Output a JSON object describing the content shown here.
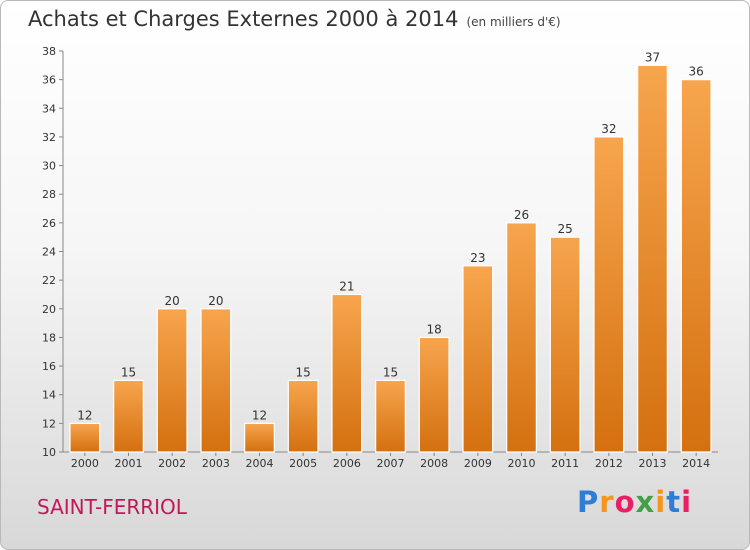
{
  "chart_data": {
    "type": "bar",
    "title": "Achats et Charges Externes 2000 à 2014",
    "subtitle": "(en milliers d'€)",
    "categories": [
      "2000",
      "2001",
      "2002",
      "2003",
      "2004",
      "2005",
      "2006",
      "2007",
      "2008",
      "2009",
      "2010",
      "2011",
      "2012",
      "2013",
      "2014"
    ],
    "values": [
      12,
      15,
      20,
      20,
      12,
      15,
      21,
      15,
      18,
      23,
      26,
      25,
      32,
      37,
      36
    ],
    "ylim": [
      10,
      38
    ],
    "yticks": [
      10,
      12,
      14,
      16,
      18,
      20,
      22,
      24,
      26,
      28,
      30,
      32,
      34,
      36,
      38
    ],
    "grid": false,
    "bar_color": "#f08c2a"
  },
  "footer": {
    "town": "SAINT-FERRIOL"
  },
  "logo": {
    "text": "Proxiti"
  }
}
